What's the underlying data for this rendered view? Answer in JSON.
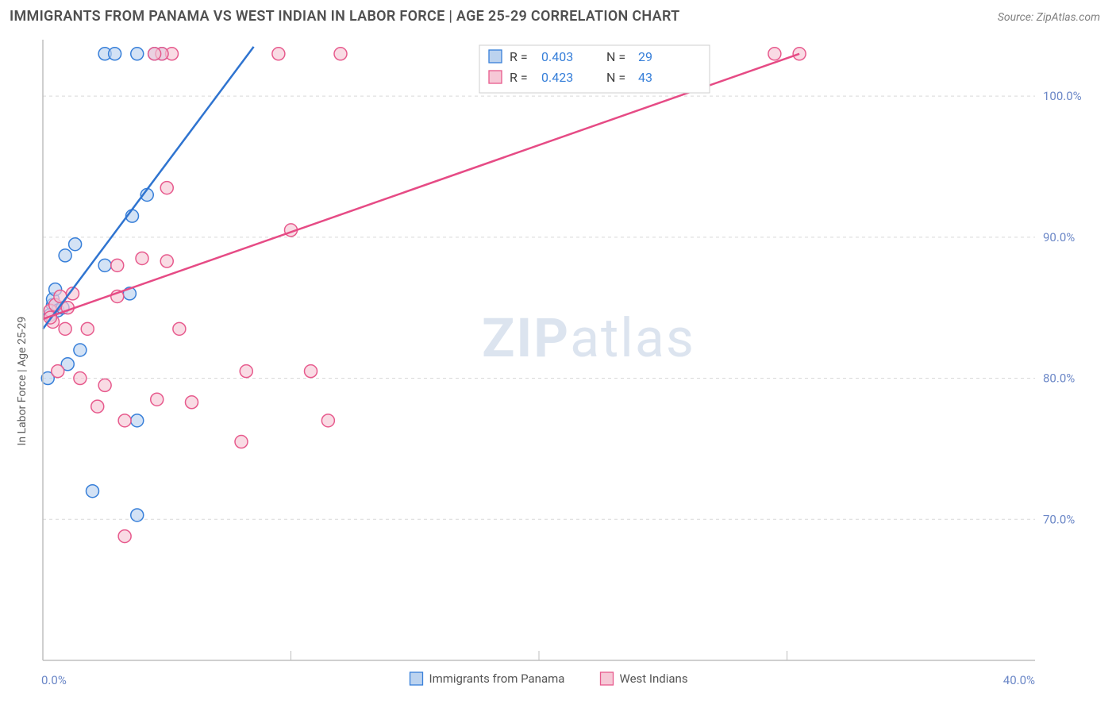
{
  "title": "IMMIGRANTS FROM PANAMA VS WEST INDIAN IN LABOR FORCE | AGE 25-29 CORRELATION CHART",
  "source": "Source: ZipAtlas.com",
  "watermark_a": "ZIP",
  "watermark_b": "atlas",
  "chart": {
    "type": "scatter-with-trend",
    "background_color": "#ffffff",
    "grid_color": "#d9d9d9",
    "axis_line_color": "#bfbfbf",
    "text_color_axis": "#6b87c7",
    "text_color_label": "#606060",
    "xlabel": "",
    "ylabel": "In Labor Force | Age 25-29",
    "xlim": [
      0,
      40
    ],
    "ylim": [
      60,
      104
    ],
    "xticks": [
      {
        "v": 0,
        "l": "0.0%"
      },
      {
        "v": 40,
        "l": "40.0%"
      }
    ],
    "yticks": [
      {
        "v": 70,
        "l": "70.0%"
      },
      {
        "v": 80,
        "l": "80.0%"
      },
      {
        "v": 90,
        "l": "90.0%"
      },
      {
        "v": 100,
        "l": "100.0%"
      }
    ],
    "x_minor_ticks": [
      10,
      20,
      30
    ],
    "marker_radius": 8,
    "marker_stroke_width": 1.5,
    "trend_line_width": 2.5,
    "series": [
      {
        "name": "Immigrants from Panama",
        "fill": "#bcd3ef",
        "stroke": "#377fd9",
        "line_color": "#2f74d0",
        "R": "0.403",
        "N": "29",
        "trend": {
          "x1": 0,
          "y1": 83.5,
          "x2": 8.5,
          "y2": 103.5
        },
        "points": [
          [
            0.4,
            85.2
          ],
          [
            0.4,
            85.6
          ],
          [
            0.6,
            84.8
          ],
          [
            0.5,
            86.3
          ],
          [
            0.8,
            85.0
          ],
          [
            0.3,
            84.5
          ],
          [
            0.9,
            88.7
          ],
          [
            1.5,
            82.0
          ],
          [
            1.0,
            81.0
          ],
          [
            0.2,
            80.0
          ],
          [
            1.3,
            89.5
          ],
          [
            2.5,
            103.0
          ],
          [
            2.9,
            103.0
          ],
          [
            3.8,
            103.0
          ],
          [
            4.5,
            103.0
          ],
          [
            4.8,
            103.0
          ],
          [
            2.0,
            72.0
          ],
          [
            3.8,
            70.3
          ],
          [
            3.6,
            91.5
          ],
          [
            2.5,
            88.0
          ],
          [
            4.2,
            93.0
          ],
          [
            3.8,
            77.0
          ],
          [
            3.5,
            86.0
          ]
        ]
      },
      {
        "name": "West Indians",
        "fill": "#f6c8d6",
        "stroke": "#e75a8d",
        "line_color": "#e64b85",
        "R": "0.423",
        "N": "43",
        "trend": {
          "x1": 0,
          "y1": 84.2,
          "x2": 30.5,
          "y2": 103.0
        },
        "points": [
          [
            0.3,
            84.8
          ],
          [
            0.5,
            85.2
          ],
          [
            0.4,
            84.0
          ],
          [
            0.7,
            85.8
          ],
          [
            0.9,
            83.5
          ],
          [
            0.3,
            84.3
          ],
          [
            1.0,
            85.0
          ],
          [
            1.2,
            86.0
          ],
          [
            0.6,
            80.5
          ],
          [
            1.5,
            80.0
          ],
          [
            1.8,
            83.5
          ],
          [
            2.5,
            79.5
          ],
          [
            3.0,
            88.0
          ],
          [
            3.0,
            85.8
          ],
          [
            3.3,
            77.0
          ],
          [
            4.0,
            88.5
          ],
          [
            4.6,
            78.5
          ],
          [
            5.5,
            83.5
          ],
          [
            6.0,
            78.3
          ],
          [
            5.0,
            93.5
          ],
          [
            5.2,
            103.0
          ],
          [
            5.0,
            88.3
          ],
          [
            4.8,
            103.0
          ],
          [
            4.5,
            103.0
          ],
          [
            9.5,
            103.0
          ],
          [
            12.0,
            103.0
          ],
          [
            8.0,
            75.5
          ],
          [
            8.2,
            80.5
          ],
          [
            10.8,
            80.5
          ],
          [
            10.0,
            90.5
          ],
          [
            11.5,
            77.0
          ],
          [
            2.2,
            78.0
          ],
          [
            3.3,
            68.8
          ],
          [
            29.5,
            103.0
          ],
          [
            30.5,
            103.0
          ]
        ]
      }
    ],
    "stats_box": {
      "R_label": "R =",
      "N_label": "N ="
    },
    "bottom_legend": [
      {
        "label": "Immigrants from Panama",
        "swatch_fill": "#bcd3ef",
        "swatch_stroke": "#377fd9"
      },
      {
        "label": "West Indians",
        "swatch_fill": "#f6c8d6",
        "swatch_stroke": "#e75a8d"
      }
    ]
  }
}
